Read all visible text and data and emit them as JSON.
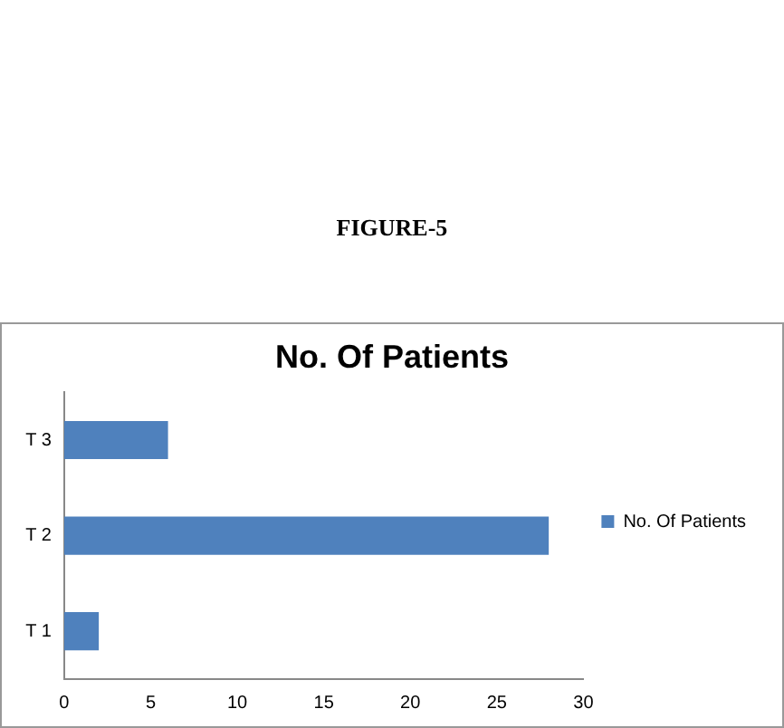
{
  "chart_data": {
    "type": "bar",
    "orientation": "horizontal",
    "title": "No. Of Patients",
    "annotations": [
      "FIGURE-5"
    ],
    "categories": [
      "T 3",
      "T 2",
      "T 1"
    ],
    "series": [
      {
        "name": "No. Of Patients",
        "color": "#4f81bd",
        "values": [
          6,
          28,
          2
        ]
      }
    ],
    "xlim": [
      0,
      30
    ],
    "xticks": [
      0,
      5,
      10,
      15,
      20,
      25,
      30
    ],
    "grid": false,
    "legend": "right"
  }
}
